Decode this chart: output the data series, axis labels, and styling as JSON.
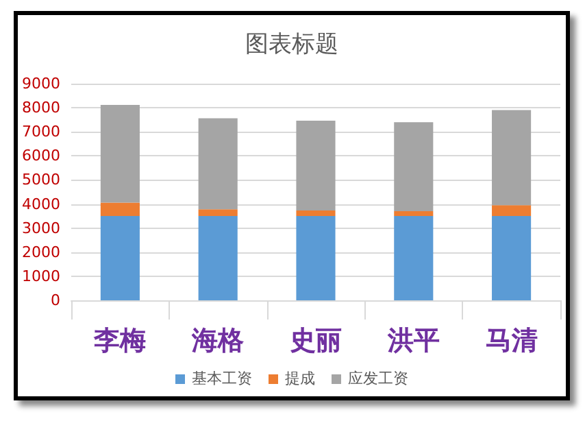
{
  "chart_data": {
    "type": "bar",
    "title": "图表标题",
    "stacked": true,
    "categories": [
      "李梅",
      "海格",
      "史丽",
      "洪平",
      "马清"
    ],
    "series": [
      {
        "name": "基本工资",
        "color": "#5b9bd5",
        "values": [
          3500,
          3500,
          3500,
          3500,
          3500
        ]
      },
      {
        "name": "提成",
        "color": "#ed7d31",
        "values": [
          560,
          280,
          230,
          200,
          450
        ]
      },
      {
        "name": "应发工资",
        "color": "#a5a5a5",
        "values": [
          4060,
          3780,
          3730,
          3700,
          3950
        ]
      }
    ],
    "ylim": [
      0,
      9000
    ],
    "yticks": [
      0,
      1000,
      2000,
      3000,
      4000,
      5000,
      6000,
      7000,
      8000,
      9000
    ],
    "grid": "y",
    "legend": "bottom"
  }
}
